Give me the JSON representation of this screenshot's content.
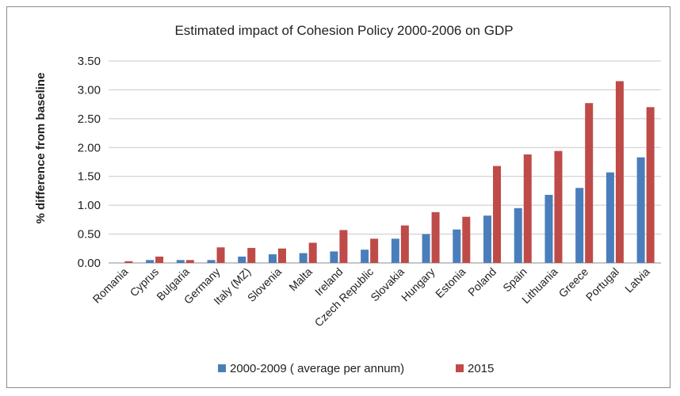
{
  "chart_data": {
    "type": "bar",
    "title": "Estimated impact of Cohesion Policy 2000-2006 on GDP",
    "xlabel": "",
    "ylabel": "% difference from baseline",
    "ylim": [
      0,
      3.5
    ],
    "yticks": [
      "0.00",
      "0.50",
      "1.00",
      "1.50",
      "2.00",
      "2.50",
      "3.00",
      "3.50"
    ],
    "grid": true,
    "legend_position": "bottom",
    "categories": [
      "Romania",
      "Cyprus",
      "Bulgaria",
      "Germany",
      "Italy (MZ)",
      "Slovenia",
      "Malta",
      "Ireland",
      "Czech Republic",
      "Slovakia",
      "Hungary",
      "Estonia",
      "Poland",
      "Spain",
      "Lithuania",
      "Greece",
      "Portugal",
      "Latvia"
    ],
    "series": [
      {
        "name": "2000-2009 ( average per annum)",
        "color": "#4a7ebb",
        "values": [
          0.0,
          0.05,
          0.05,
          0.05,
          0.11,
          0.15,
          0.17,
          0.2,
          0.23,
          0.42,
          0.5,
          0.58,
          0.82,
          0.95,
          1.18,
          1.3,
          1.57,
          1.83
        ]
      },
      {
        "name": "2015",
        "color": "#be4b48",
        "values": [
          0.03,
          0.11,
          0.05,
          0.27,
          0.26,
          0.25,
          0.35,
          0.57,
          0.42,
          0.65,
          0.88,
          0.8,
          1.68,
          1.88,
          1.94,
          2.77,
          3.15,
          2.7
        ]
      }
    ]
  }
}
